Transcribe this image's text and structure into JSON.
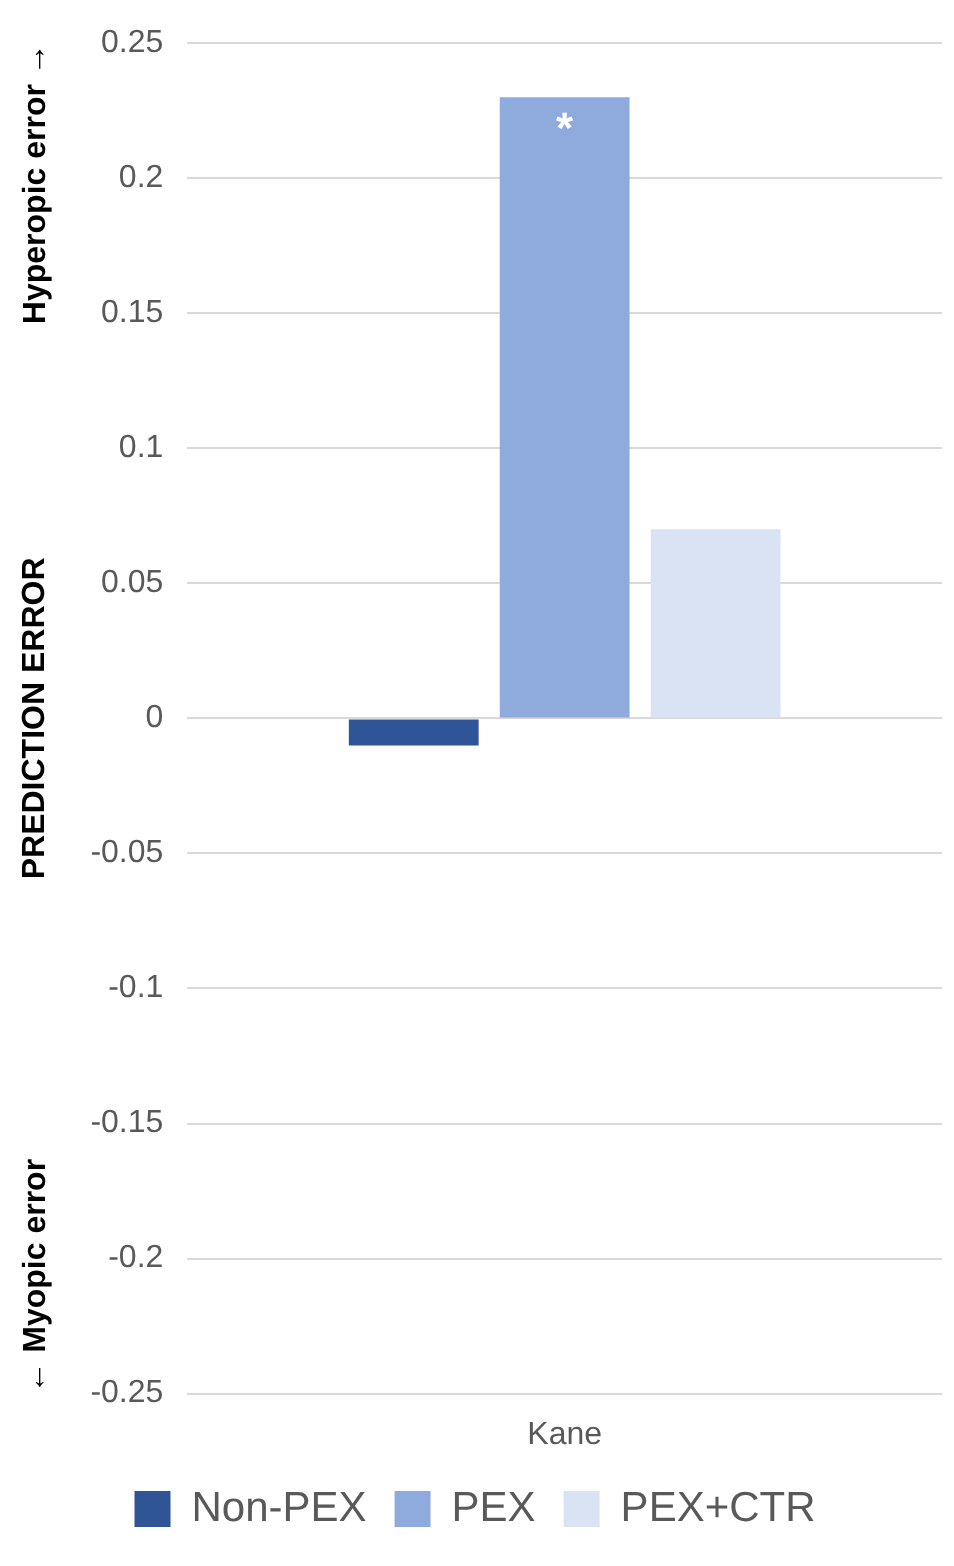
{
  "chart_data": {
    "type": "bar",
    "ylabel": "PREDICTION ERROR",
    "categories": [
      "Kane"
    ],
    "series": [
      {
        "name": "Non-PEX",
        "color": "#2f5597",
        "values": [
          -0.01
        ]
      },
      {
        "name": "PEX",
        "color": "#8faadc",
        "values": [
          0.23
        ]
      },
      {
        "name": "PEX+CTR",
        "color": "#dae3f3",
        "values": [
          0.07
        ]
      }
    ],
    "ylim": [
      -0.25,
      0.25
    ],
    "yticks": [
      -0.25,
      -0.2,
      -0.15,
      -0.1,
      -0.05,
      0,
      0.05,
      0.1,
      0.15,
      0.2,
      0.25
    ],
    "grid": "y",
    "legend": "bottom",
    "annotations": [
      "Hyperopic error →",
      "← Myopic error",
      {
        "text": "*",
        "x": "Kane",
        "y": 0.23
      }
    ]
  }
}
